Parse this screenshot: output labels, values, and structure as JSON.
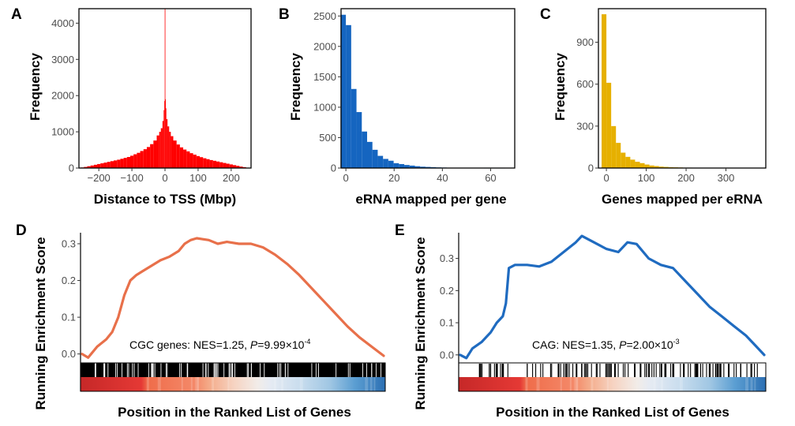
{
  "chart_data": [
    {
      "id": "A",
      "panel_label": "A",
      "type": "bar",
      "xlabel": "Distance to TSS (Mbp)",
      "ylabel": "Frequency",
      "xlim": [
        -260,
        260
      ],
      "ylim": [
        0,
        4400
      ],
      "xticks": [
        -200,
        -100,
        0,
        100,
        200
      ],
      "xtick_labels": [
        "−200",
        "−100",
        "0",
        "100",
        "200"
      ],
      "yticks": [
        0,
        1000,
        2000,
        3000,
        4000
      ],
      "ytick_labels": [
        "0",
        "1000",
        "2000",
        "3000",
        "4000"
      ],
      "color": "#ff0000",
      "bins": [
        {
          "x": -250,
          "y": 15
        },
        {
          "x": -240,
          "y": 30
        },
        {
          "x": -230,
          "y": 50
        },
        {
          "x": -220,
          "y": 70
        },
        {
          "x": -210,
          "y": 90
        },
        {
          "x": -200,
          "y": 110
        },
        {
          "x": -190,
          "y": 130
        },
        {
          "x": -180,
          "y": 150
        },
        {
          "x": -170,
          "y": 170
        },
        {
          "x": -160,
          "y": 190
        },
        {
          "x": -150,
          "y": 210
        },
        {
          "x": -140,
          "y": 230
        },
        {
          "x": -130,
          "y": 255
        },
        {
          "x": -120,
          "y": 280
        },
        {
          "x": -110,
          "y": 305
        },
        {
          "x": -100,
          "y": 340
        },
        {
          "x": -90,
          "y": 380
        },
        {
          "x": -80,
          "y": 420
        },
        {
          "x": -70,
          "y": 470
        },
        {
          "x": -60,
          "y": 520
        },
        {
          "x": -50,
          "y": 580
        },
        {
          "x": -40,
          "y": 660
        },
        {
          "x": -30,
          "y": 760
        },
        {
          "x": -20,
          "y": 900
        },
        {
          "x": -15,
          "y": 1000
        },
        {
          "x": -10,
          "y": 1100
        },
        {
          "x": -5,
          "y": 1300
        },
        {
          "x": -3,
          "y": 1600
        },
        {
          "x": -1,
          "y": 1850
        },
        {
          "x": 0,
          "y": 4400
        },
        {
          "x": 1,
          "y": 1900
        },
        {
          "x": 3,
          "y": 1650
        },
        {
          "x": 5,
          "y": 1350
        },
        {
          "x": 10,
          "y": 1150
        },
        {
          "x": 15,
          "y": 1000
        },
        {
          "x": 20,
          "y": 880
        },
        {
          "x": 30,
          "y": 760
        },
        {
          "x": 40,
          "y": 650
        },
        {
          "x": 50,
          "y": 570
        },
        {
          "x": 60,
          "y": 510
        },
        {
          "x": 70,
          "y": 460
        },
        {
          "x": 80,
          "y": 410
        },
        {
          "x": 90,
          "y": 370
        },
        {
          "x": 100,
          "y": 330
        },
        {
          "x": 110,
          "y": 300
        },
        {
          "x": 120,
          "y": 270
        },
        {
          "x": 130,
          "y": 245
        },
        {
          "x": 140,
          "y": 220
        },
        {
          "x": 150,
          "y": 200
        },
        {
          "x": 160,
          "y": 180
        },
        {
          "x": 170,
          "y": 160
        },
        {
          "x": 180,
          "y": 140
        },
        {
          "x": 190,
          "y": 120
        },
        {
          "x": 200,
          "y": 100
        },
        {
          "x": 210,
          "y": 80
        },
        {
          "x": 220,
          "y": 60
        },
        {
          "x": 230,
          "y": 40
        },
        {
          "x": 240,
          "y": 25
        },
        {
          "x": 250,
          "y": 10
        }
      ]
    },
    {
      "id": "B",
      "panel_label": "B",
      "type": "bar",
      "xlabel": "eRNA mapped per gene",
      "ylabel": "Frequency",
      "xlim": [
        -2,
        70
      ],
      "ylim": [
        0,
        2620
      ],
      "xticks": [
        0,
        20,
        40,
        60
      ],
      "xtick_labels": [
        "0",
        "20",
        "40",
        "60"
      ],
      "yticks": [
        0,
        500,
        1000,
        1500,
        2000,
        2500
      ],
      "ytick_labels": [
        "0",
        "500",
        "1000",
        "1500",
        "2000",
        "2500"
      ],
      "color": "#1565c0",
      "bin_width": 2.2,
      "bins": [
        {
          "x": -1.1,
          "y": 2520
        },
        {
          "x": 1.1,
          "y": 2350
        },
        {
          "x": 3.3,
          "y": 1300
        },
        {
          "x": 5.5,
          "y": 920
        },
        {
          "x": 7.7,
          "y": 600
        },
        {
          "x": 9.9,
          "y": 430
        },
        {
          "x": 12.1,
          "y": 300
        },
        {
          "x": 14.3,
          "y": 200
        },
        {
          "x": 16.5,
          "y": 150
        },
        {
          "x": 18.7,
          "y": 120
        },
        {
          "x": 20.9,
          "y": 80
        },
        {
          "x": 23.1,
          "y": 65
        },
        {
          "x": 25.3,
          "y": 50
        },
        {
          "x": 27.5,
          "y": 40
        },
        {
          "x": 29.7,
          "y": 30
        },
        {
          "x": 31.9,
          "y": 22
        },
        {
          "x": 34.1,
          "y": 18
        },
        {
          "x": 36.3,
          "y": 14
        },
        {
          "x": 38.5,
          "y": 10
        },
        {
          "x": 40.7,
          "y": 8
        },
        {
          "x": 42.9,
          "y": 6
        },
        {
          "x": 45.1,
          "y": 5
        },
        {
          "x": 47.3,
          "y": 4
        },
        {
          "x": 49.5,
          "y": 3
        },
        {
          "x": 51.7,
          "y": 3
        },
        {
          "x": 53.9,
          "y": 2
        },
        {
          "x": 56.1,
          "y": 2
        },
        {
          "x": 58.3,
          "y": 1
        },
        {
          "x": 60.5,
          "y": 1
        },
        {
          "x": 62.7,
          "y": 1
        },
        {
          "x": 64.9,
          "y": 1
        }
      ]
    },
    {
      "id": "C",
      "panel_label": "C",
      "type": "bar",
      "xlabel": "Genes mapped per eRNA",
      "ylabel": "Frequency",
      "xlim": [
        -20,
        400
      ],
      "ylim": [
        0,
        1140
      ],
      "xticks": [
        0,
        100,
        200,
        300
      ],
      "xtick_labels": [
        "0",
        "100",
        "200",
        "300"
      ],
      "yticks": [
        0,
        300,
        600,
        900
      ],
      "ytick_labels": [
        "0",
        "300",
        "600",
        "900"
      ],
      "color": "#e6b000",
      "bin_width": 12,
      "bins": [
        {
          "x": -6,
          "y": 1100
        },
        {
          "x": 6,
          "y": 610
        },
        {
          "x": 18,
          "y": 300
        },
        {
          "x": 30,
          "y": 180
        },
        {
          "x": 42,
          "y": 110
        },
        {
          "x": 54,
          "y": 80
        },
        {
          "x": 66,
          "y": 60
        },
        {
          "x": 78,
          "y": 45
        },
        {
          "x": 90,
          "y": 35
        },
        {
          "x": 102,
          "y": 25
        },
        {
          "x": 114,
          "y": 18
        },
        {
          "x": 126,
          "y": 14
        },
        {
          "x": 138,
          "y": 10
        },
        {
          "x": 150,
          "y": 8
        },
        {
          "x": 162,
          "y": 6
        },
        {
          "x": 174,
          "y": 5
        },
        {
          "x": 186,
          "y": 4
        },
        {
          "x": 198,
          "y": 3
        },
        {
          "x": 210,
          "y": 3
        },
        {
          "x": 222,
          "y": 2
        },
        {
          "x": 234,
          "y": 2
        },
        {
          "x": 246,
          "y": 2
        },
        {
          "x": 258,
          "y": 1
        },
        {
          "x": 270,
          "y": 1
        },
        {
          "x": 282,
          "y": 1
        },
        {
          "x": 294,
          "y": 1
        },
        {
          "x": 306,
          "y": 1
        },
        {
          "x": 318,
          "y": 1
        },
        {
          "x": 330,
          "y": 1
        },
        {
          "x": 342,
          "y": 1
        },
        {
          "x": 354,
          "y": 1
        },
        {
          "x": 366,
          "y": 1
        }
      ]
    },
    {
      "id": "D",
      "panel_label": "D",
      "type": "line",
      "xlabel": "Position in the Ranked List of Genes",
      "ylabel": "Running Enrichment Score",
      "xlim": [
        0,
        1
      ],
      "ylim": [
        -0.02,
        0.33
      ],
      "yticks": [
        0.0,
        0.1,
        0.2,
        0.3
      ],
      "ytick_labels": [
        "0.0",
        "0.1",
        "0.2",
        "0.3"
      ],
      "color": "#e8704a",
      "annotation": {
        "prefix": "CGC genes: NES=1.25, ",
        "p_symbol": "P",
        "p_value": "=9.99×10",
        "p_exp": "-4"
      },
      "series": [
        {
          "values": [
            {
              "x": 0.0,
              "y": 0.0
            },
            {
              "x": 0.02,
              "y": -0.01
            },
            {
              "x": 0.05,
              "y": 0.02
            },
            {
              "x": 0.08,
              "y": 0.04
            },
            {
              "x": 0.1,
              "y": 0.06
            },
            {
              "x": 0.12,
              "y": 0.1
            },
            {
              "x": 0.14,
              "y": 0.16
            },
            {
              "x": 0.16,
              "y": 0.2
            },
            {
              "x": 0.18,
              "y": 0.215
            },
            {
              "x": 0.2,
              "y": 0.225
            },
            {
              "x": 0.23,
              "y": 0.24
            },
            {
              "x": 0.26,
              "y": 0.255
            },
            {
              "x": 0.29,
              "y": 0.265
            },
            {
              "x": 0.32,
              "y": 0.28
            },
            {
              "x": 0.34,
              "y": 0.3
            },
            {
              "x": 0.36,
              "y": 0.31
            },
            {
              "x": 0.38,
              "y": 0.315
            },
            {
              "x": 0.42,
              "y": 0.31
            },
            {
              "x": 0.45,
              "y": 0.3
            },
            {
              "x": 0.48,
              "y": 0.305
            },
            {
              "x": 0.52,
              "y": 0.3
            },
            {
              "x": 0.56,
              "y": 0.3
            },
            {
              "x": 0.6,
              "y": 0.29
            },
            {
              "x": 0.64,
              "y": 0.27
            },
            {
              "x": 0.68,
              "y": 0.245
            },
            {
              "x": 0.72,
              "y": 0.215
            },
            {
              "x": 0.76,
              "y": 0.18
            },
            {
              "x": 0.8,
              "y": 0.145
            },
            {
              "x": 0.84,
              "y": 0.11
            },
            {
              "x": 0.88,
              "y": 0.075
            },
            {
              "x": 0.92,
              "y": 0.045
            },
            {
              "x": 0.96,
              "y": 0.02
            },
            {
              "x": 1.0,
              "y": -0.005
            }
          ]
        }
      ]
    },
    {
      "id": "E",
      "panel_label": "E",
      "type": "line",
      "xlabel": "Position in the Ranked List of Genes",
      "ylabel": "Running Enrichment Score",
      "xlim": [
        0,
        1
      ],
      "ylim": [
        -0.02,
        0.38
      ],
      "yticks": [
        0.0,
        0.1,
        0.2,
        0.3
      ],
      "ytick_labels": [
        "0.0",
        "0.1",
        "0.2",
        "0.3"
      ],
      "color": "#1f6bc0",
      "annotation": {
        "prefix": "CAG: NES=1.35, ",
        "p_symbol": "P",
        "p_value": "=2.00×10",
        "p_exp": "-3"
      },
      "series": [
        {
          "values": [
            {
              "x": 0.0,
              "y": 0.0
            },
            {
              "x": 0.02,
              "y": -0.01
            },
            {
              "x": 0.04,
              "y": 0.02
            },
            {
              "x": 0.07,
              "y": 0.04
            },
            {
              "x": 0.1,
              "y": 0.07
            },
            {
              "x": 0.12,
              "y": 0.1
            },
            {
              "x": 0.14,
              "y": 0.12
            },
            {
              "x": 0.15,
              "y": 0.16
            },
            {
              "x": 0.16,
              "y": 0.27
            },
            {
              "x": 0.18,
              "y": 0.28
            },
            {
              "x": 0.22,
              "y": 0.28
            },
            {
              "x": 0.26,
              "y": 0.275
            },
            {
              "x": 0.3,
              "y": 0.29
            },
            {
              "x": 0.34,
              "y": 0.32
            },
            {
              "x": 0.38,
              "y": 0.35
            },
            {
              "x": 0.4,
              "y": 0.37
            },
            {
              "x": 0.44,
              "y": 0.35
            },
            {
              "x": 0.48,
              "y": 0.33
            },
            {
              "x": 0.52,
              "y": 0.32
            },
            {
              "x": 0.55,
              "y": 0.35
            },
            {
              "x": 0.58,
              "y": 0.345
            },
            {
              "x": 0.62,
              "y": 0.3
            },
            {
              "x": 0.66,
              "y": 0.28
            },
            {
              "x": 0.7,
              "y": 0.27
            },
            {
              "x": 0.74,
              "y": 0.23
            },
            {
              "x": 0.78,
              "y": 0.19
            },
            {
              "x": 0.82,
              "y": 0.15
            },
            {
              "x": 0.86,
              "y": 0.12
            },
            {
              "x": 0.9,
              "y": 0.09
            },
            {
              "x": 0.94,
              "y": 0.06
            },
            {
              "x": 0.97,
              "y": 0.03
            },
            {
              "x": 1.0,
              "y": 0.0
            }
          ]
        }
      ]
    }
  ]
}
